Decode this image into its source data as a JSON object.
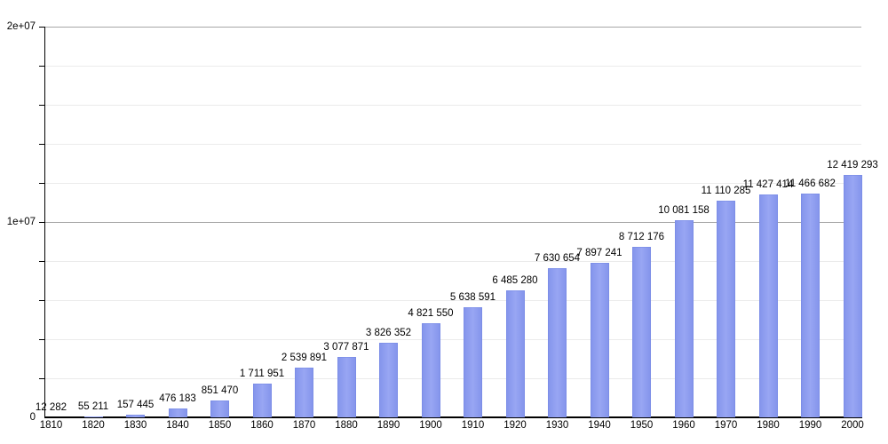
{
  "chart_data": {
    "type": "bar",
    "title": "",
    "xlabel": "",
    "ylabel": "",
    "legend": "none",
    "grid": "horizontal, minor every 2000000, major every 10000000",
    "ylim": [
      0,
      20000000
    ],
    "categories": [
      "1810",
      "1820",
      "1830",
      "1840",
      "1850",
      "1860",
      "1870",
      "1880",
      "1890",
      "1900",
      "1910",
      "1920",
      "1930",
      "1940",
      "1950",
      "1960",
      "1970",
      "1980",
      "1990",
      "2000"
    ],
    "values": [
      12282,
      55211,
      157445,
      476183,
      851470,
      1711951,
      2539891,
      3077871,
      3826352,
      4821550,
      5638591,
      6485280,
      7630654,
      7897241,
      8712176,
      10081158,
      11110285,
      11427414,
      11466682,
      12419293
    ],
    "value_labels": [
      "12 282",
      "55 211",
      "157 445",
      "476 183",
      "851 470",
      "1 711 951",
      "2 539 891",
      "3 077 871",
      "3 826 352",
      "4 821 550",
      "5 638 591",
      "6 485 280",
      "7 630 654",
      "7 897 241",
      "8 712 176",
      "10 081 158",
      "11 110 285",
      "11 427 414",
      "11 466 682",
      "12 419 293"
    ],
    "y_axis": {
      "minor_step": 2000000,
      "ticks": [
        {
          "value": 0,
          "label": "0"
        },
        {
          "value": 10000000,
          "label": "1e+07"
        },
        {
          "value": 20000000,
          "label": "2e+07"
        }
      ]
    },
    "colors": {
      "bar": "#8f9ff0",
      "grid_minor": "#ebebeb",
      "grid_major": "#a6a6a6",
      "axis": "#000000",
      "text": "#000000",
      "background": "#ffffff"
    }
  }
}
